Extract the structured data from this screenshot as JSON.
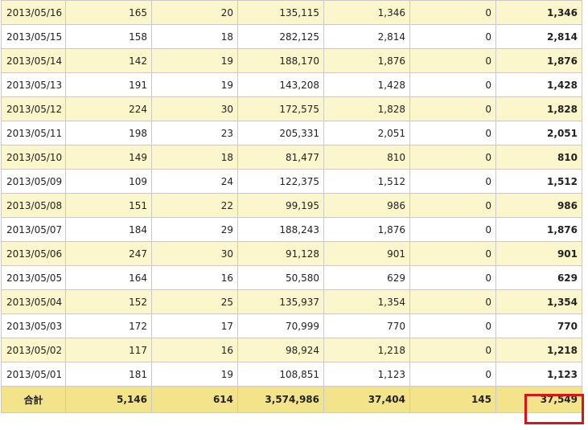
{
  "rows": [
    {
      "date": "2013/05/16",
      "c1": "165",
      "c2": "20",
      "c3": "135,115",
      "c4": "1,346",
      "c5": "0",
      "total": "1,346"
    },
    {
      "date": "2013/05/15",
      "c1": "158",
      "c2": "18",
      "c3": "282,125",
      "c4": "2,814",
      "c5": "0",
      "total": "2,814"
    },
    {
      "date": "2013/05/14",
      "c1": "142",
      "c2": "19",
      "c3": "188,170",
      "c4": "1,876",
      "c5": "0",
      "total": "1,876"
    },
    {
      "date": "2013/05/13",
      "c1": "191",
      "c2": "19",
      "c3": "143,208",
      "c4": "1,428",
      "c5": "0",
      "total": "1,428"
    },
    {
      "date": "2013/05/12",
      "c1": "224",
      "c2": "30",
      "c3": "172,575",
      "c4": "1,828",
      "c5": "0",
      "total": "1,828"
    },
    {
      "date": "2013/05/11",
      "c1": "198",
      "c2": "23",
      "c3": "205,331",
      "c4": "2,051",
      "c5": "0",
      "total": "2,051"
    },
    {
      "date": "2013/05/10",
      "c1": "149",
      "c2": "18",
      "c3": "81,477",
      "c4": "810",
      "c5": "0",
      "total": "810"
    },
    {
      "date": "2013/05/09",
      "c1": "109",
      "c2": "24",
      "c3": "122,375",
      "c4": "1,512",
      "c5": "0",
      "total": "1,512"
    },
    {
      "date": "2013/05/08",
      "c1": "151",
      "c2": "22",
      "c3": "99,195",
      "c4": "986",
      "c5": "0",
      "total": "986"
    },
    {
      "date": "2013/05/07",
      "c1": "184",
      "c2": "29",
      "c3": "188,243",
      "c4": "1,876",
      "c5": "0",
      "total": "1,876"
    },
    {
      "date": "2013/05/06",
      "c1": "247",
      "c2": "30",
      "c3": "91,128",
      "c4": "901",
      "c5": "0",
      "total": "901"
    },
    {
      "date": "2013/05/05",
      "c1": "164",
      "c2": "16",
      "c3": "50,580",
      "c4": "629",
      "c5": "0",
      "total": "629"
    },
    {
      "date": "2013/05/04",
      "c1": "152",
      "c2": "25",
      "c3": "135,937",
      "c4": "1,354",
      "c5": "0",
      "total": "1,354"
    },
    {
      "date": "2013/05/03",
      "c1": "172",
      "c2": "17",
      "c3": "70,999",
      "c4": "770",
      "c5": "0",
      "total": "770"
    },
    {
      "date": "2013/05/02",
      "c1": "117",
      "c2": "16",
      "c3": "98,924",
      "c4": "1,218",
      "c5": "0",
      "total": "1,218"
    },
    {
      "date": "2013/05/01",
      "c1": "181",
      "c2": "19",
      "c3": "108,851",
      "c4": "1,123",
      "c5": "0",
      "total": "1,123"
    }
  ],
  "summary": {
    "label": "合計",
    "c1": "5,146",
    "c2": "614",
    "c3": "3,574,986",
    "c4": "37,404",
    "c5": "145",
    "total": "37,549"
  },
  "colors": {
    "odd_row": "#fbf6cc",
    "even_row": "#ffffff",
    "summary_row": "#f3e48b",
    "highlight": "#d9141a"
  }
}
